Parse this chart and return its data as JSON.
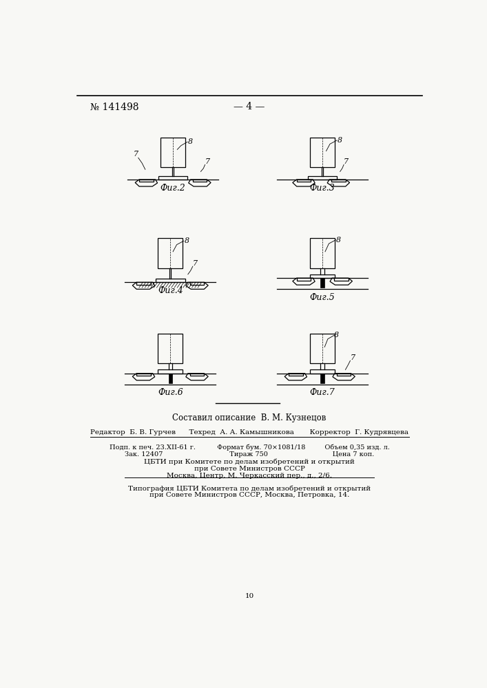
{
  "bg_color": "#f8f8f5",
  "header_patent": "№ 141498",
  "header_page": "— 4 —",
  "fig_labels": [
    "Фиг.2",
    "Фиг.3",
    "Фиг.4",
    "Фиг.5",
    "Фиг.6",
    "Фиг.7"
  ],
  "bottom_text1": "Составил описание  В. М. Кузнецов",
  "bottom_text2": "Редактор  Б. В. Гурчев      Техред  А. А. Камышникова       Корректор  Г. Кудрявцева",
  "bottom_text3": "Подп. к печ. 23.XII-61 г.          Формат бум. 70×1081/18         Объем 0,35 изд. л.",
  "bottom_text4": "Зак. 12407                               Тираж 750                              Цена 7 коп.",
  "bottom_text5": "ЦБТИ при Комитете по делам изобретений и открытий",
  "bottom_text6": "при Совете Министров СССР",
  "bottom_text7": "Москва, Центр, М. Черкасский пер., д., 2/6.",
  "bottom_text8": "Типография ЦБТИ Комитета по делам изобретений и открытий",
  "bottom_text9": "при Совете Министров СССР, Москва, Петровка, 14.",
  "page_number": "10"
}
